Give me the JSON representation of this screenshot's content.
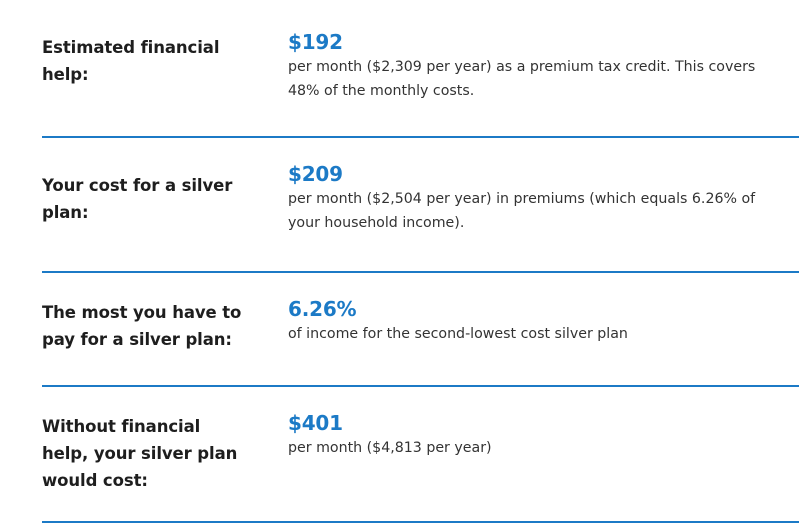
{
  "rows": [
    {
      "label": "Estimated financial help:",
      "amount": "$192",
      "description": "per month ($2,309 per year) as a premium tax credit. This covers 48% of the monthly costs."
    },
    {
      "label": "Your cost for a silver plan:",
      "amount": "$209",
      "description": "per month ($2,504 per year) in premiums (which equals 6.26% of your household income)."
    },
    {
      "label": "The most you have to pay for a silver plan:",
      "amount": "6.26%",
      "description": "of income for the second-lowest cost silver plan"
    },
    {
      "label": "Without financial help, your silver plan would cost:",
      "amount": "$401",
      "description": "per month ($4,813 per year)"
    }
  ],
  "colors": {
    "accent": "#1c7ac6",
    "label_text": "#1e1e1e",
    "body_text": "#333333"
  }
}
